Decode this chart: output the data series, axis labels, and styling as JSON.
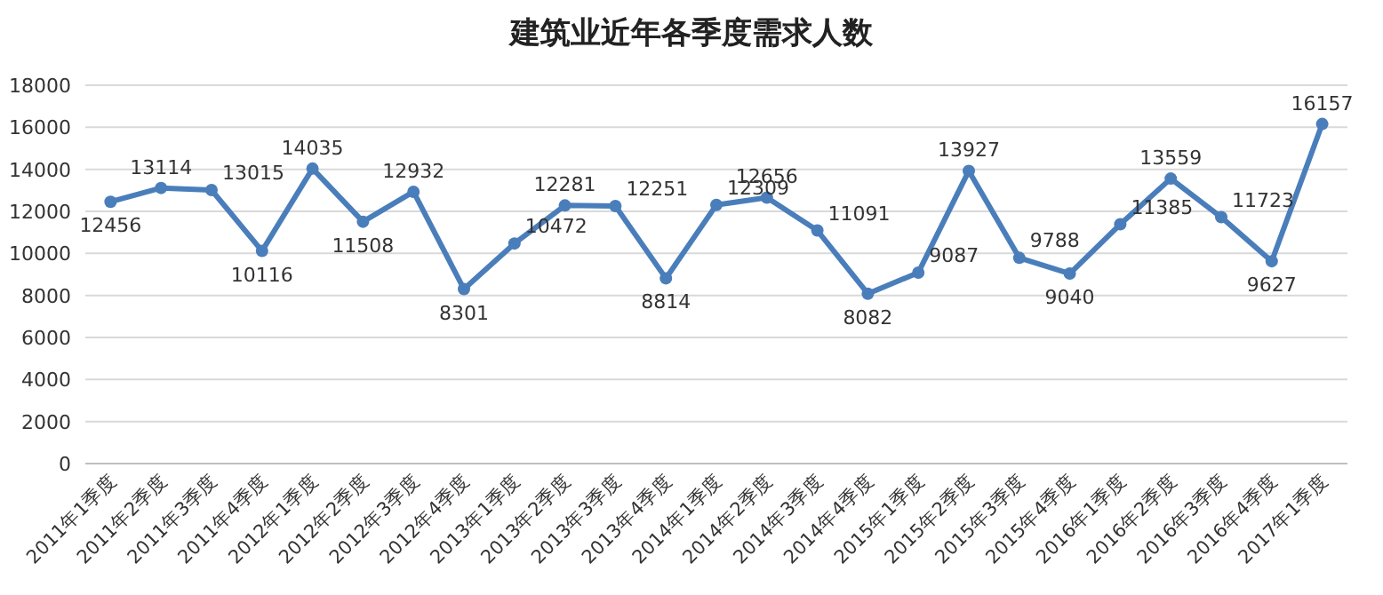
{
  "chart_data": {
    "type": "line",
    "title": "建筑业近年各季度需求人数",
    "categories": [
      "2011年1季度",
      "2011年2季度",
      "2011年3季度",
      "2011年4季度",
      "2012年1季度",
      "2012年2季度",
      "2012年3季度",
      "2012年4季度",
      "2013年1季度",
      "2013年2季度",
      "2013年3季度",
      "2013年4季度",
      "2014年1季度",
      "2014年2季度",
      "2014年3季度",
      "2014年4季度",
      "2015年1季度",
      "2015年2季度",
      "2015年3季度",
      "2015年4季度",
      "2016年1季度",
      "2016年2季度",
      "2016年3季度",
      "2016年4季度",
      "2017年1季度"
    ],
    "values": [
      12456,
      13114,
      13015,
      10116,
      14035,
      11508,
      12932,
      8301,
      10472,
      12281,
      12251,
      8814,
      12309,
      12656,
      11091,
      8082,
      9087,
      13927,
      9788,
      9040,
      11385,
      13559,
      11723,
      9627,
      16157
    ],
    "color": "#4a7ebb",
    "marker": "circle",
    "line_style": "solid",
    "data_labels": true,
    "ylim": [
      0,
      18000
    ],
    "yticks": [
      0,
      2000,
      4000,
      6000,
      8000,
      10000,
      12000,
      14000,
      16000,
      18000
    ],
    "grid": "y"
  }
}
